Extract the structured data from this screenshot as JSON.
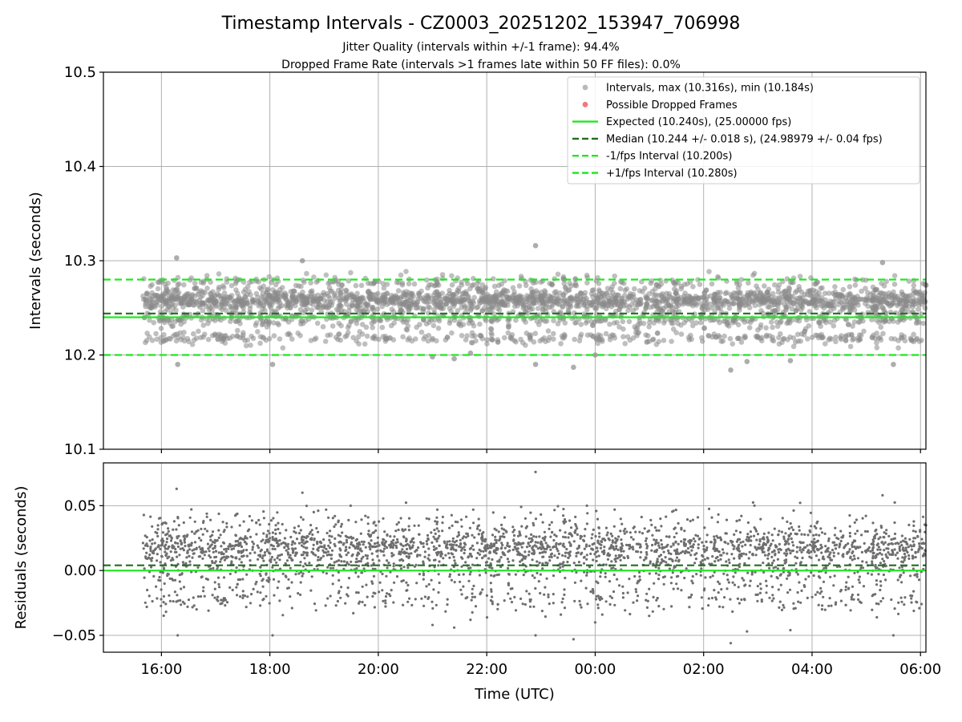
{
  "chart_data": {
    "type": "scatter",
    "title": "Timestamp Intervals - CZ0003_20251202_153947_706998",
    "subtitle_lines": [
      "Jitter Quality (intervals within +/-1 frame): 94.4%",
      "Dropped Frame Rate (intervals >1 frames late within 50 FF files): 0.0%"
    ],
    "xlabel": "Time (UTC)",
    "x_range_hours": [
      14.93,
      30.1
    ],
    "x_ticks": [
      {
        "hour": 16,
        "label": "16:00"
      },
      {
        "hour": 18,
        "label": "18:00"
      },
      {
        "hour": 20,
        "label": "20:00"
      },
      {
        "hour": 22,
        "label": "22:00"
      },
      {
        "hour": 24,
        "label": "00:00"
      },
      {
        "hour": 26,
        "label": "02:00"
      },
      {
        "hour": 28,
        "label": "04:00"
      },
      {
        "hour": 30,
        "label": "06:00"
      }
    ],
    "data_start_hour": 15.66,
    "data_end_hour": 30.1,
    "frame_interval_s": 10.24,
    "top_panel": {
      "ylabel": "Intervals (seconds)",
      "ylim": [
        10.1,
        10.5
      ],
      "y_ticks": [
        {
          "value": 10.1,
          "label": "10.1"
        },
        {
          "value": 10.2,
          "label": "10.2"
        },
        {
          "value": 10.3,
          "label": "10.3"
        },
        {
          "value": 10.4,
          "label": "10.4"
        },
        {
          "value": 10.5,
          "label": "10.5"
        }
      ],
      "lines": {
        "expected": 10.24,
        "median": 10.244,
        "lower_fps": 10.2,
        "upper_fps": 10.28
      },
      "max_interval": 10.316,
      "min_interval": 10.184,
      "dropped_frames": 0
    },
    "bottom_panel": {
      "ylabel": "Residuals (seconds)",
      "ylim": [
        -0.063,
        0.083
      ],
      "y_ticks": [
        {
          "value": -0.05,
          "label": "−0.05"
        },
        {
          "value": 0.0,
          "label": "0.00"
        },
        {
          "value": 0.05,
          "label": "0.05"
        }
      ],
      "lines": {
        "zero": 0.0,
        "median": 0.004
      }
    },
    "clusters": [
      {
        "value": 10.258,
        "spread": 0.006,
        "weight": 0.6
      },
      {
        "value": 10.238,
        "spread": 0.004,
        "weight": 0.17
      },
      {
        "value": 10.218,
        "spread": 0.003,
        "weight": 0.11
      },
      {
        "value": 10.277,
        "spread": 0.003,
        "weight": 0.07
      }
    ],
    "outliers": [
      {
        "hour": 16.28,
        "value": 10.303
      },
      {
        "hour": 16.3,
        "value": 10.19
      },
      {
        "hour": 18.05,
        "value": 10.19
      },
      {
        "hour": 18.6,
        "value": 10.3
      },
      {
        "hour": 21.0,
        "value": 10.198
      },
      {
        "hour": 21.4,
        "value": 10.196
      },
      {
        "hour": 21.7,
        "value": 10.202
      },
      {
        "hour": 22.9,
        "value": 10.316
      },
      {
        "hour": 22.9,
        "value": 10.19
      },
      {
        "hour": 23.6,
        "value": 10.187
      },
      {
        "hour": 24.0,
        "value": 10.2
      },
      {
        "hour": 26.5,
        "value": 10.184
      },
      {
        "hour": 26.8,
        "value": 10.193
      },
      {
        "hour": 27.6,
        "value": 10.194
      },
      {
        "hour": 29.5,
        "value": 10.19
      },
      {
        "hour": 29.3,
        "value": 10.298
      }
    ],
    "legend": {
      "position": "upper-right",
      "entries": [
        {
          "kind": "scatter",
          "color": "#8a8a8a",
          "label": "Intervals, max (10.316s), min (10.184s)"
        },
        {
          "kind": "scatter",
          "color": "#f06a6a",
          "label": "Possible Dropped Frames"
        },
        {
          "kind": "solid",
          "color": "#22e622",
          "label": "Expected (10.240s), (25.00000 fps)"
        },
        {
          "kind": "dashed",
          "color": "#1f6e1f",
          "label": "Median (10.244 +/- 0.018 s), (24.98979 +/- 0.04 fps)"
        },
        {
          "kind": "dashed",
          "color": "#22e622",
          "label": "-1/fps Interval (10.200s)"
        },
        {
          "kind": "dashed",
          "color": "#22e622",
          "label": "+1/fps Interval (10.280s)"
        }
      ]
    }
  },
  "colors": {
    "points": "#8a8a8a",
    "expected": "#22e622",
    "median": "#1f6e1f",
    "fps_bounds": "#22e622",
    "grid": "#b0b0b0"
  }
}
